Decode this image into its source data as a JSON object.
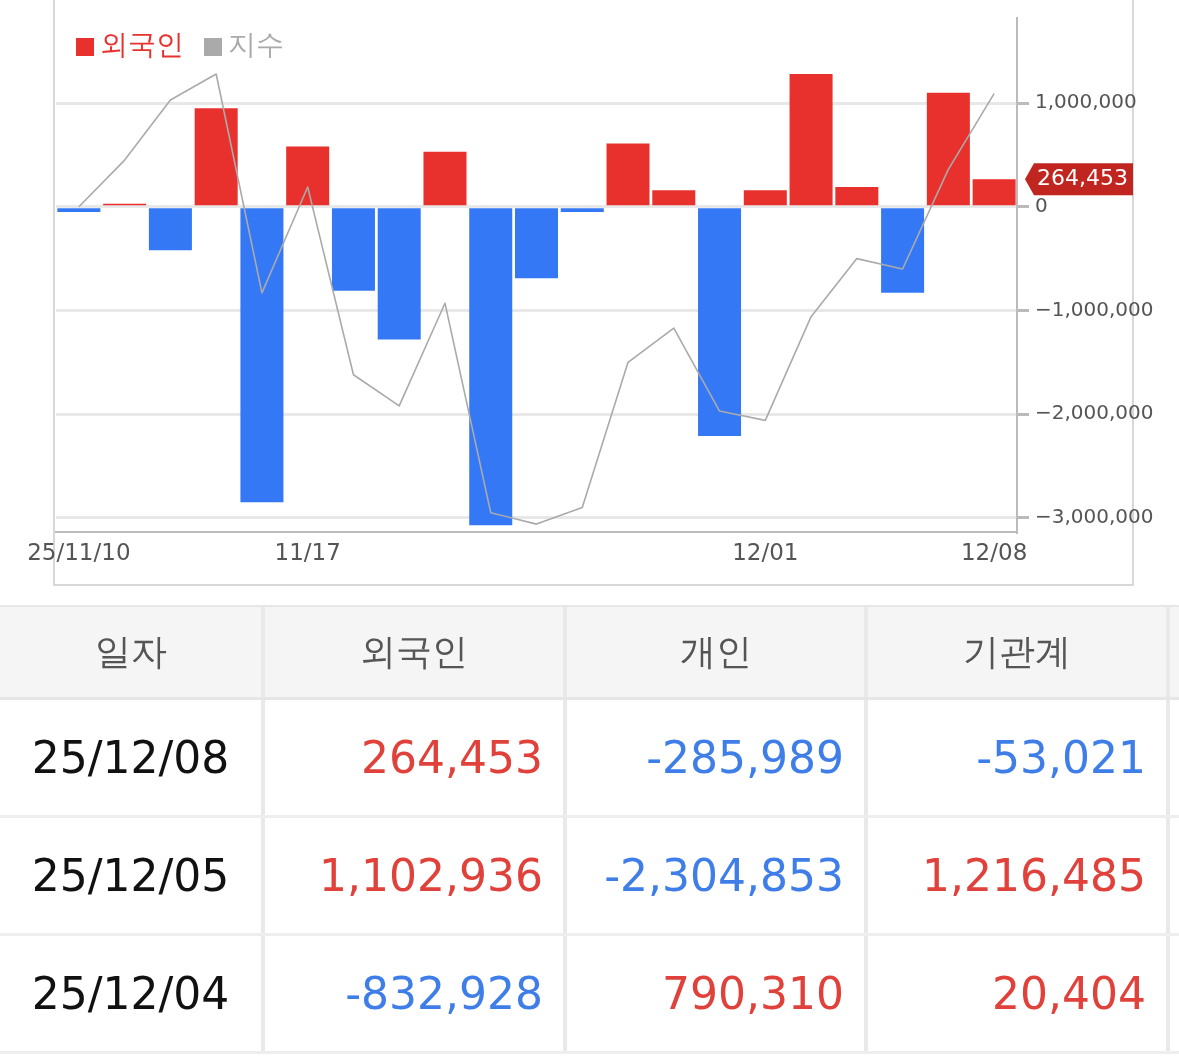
{
  "chart_data": [
    {
      "type": "bar",
      "categories": [
        "25/11/10",
        null,
        null,
        null,
        null,
        "11/17",
        null,
        null,
        null,
        null,
        null,
        null,
        null,
        null,
        null,
        "12/01",
        null,
        null,
        null,
        null,
        "12/08"
      ],
      "series": [
        {
          "name": "외국인",
          "colors": [
            "#3478f6",
            "#e8312c",
            "#3478f6",
            "#e8312c",
            "#3478f6",
            "#e8312c",
            "#3478f6",
            "#3478f6",
            "#e8312c",
            "#3478f6",
            "#3478f6",
            "#3478f6",
            "#e8312c",
            "#e8312c",
            "#3478f6",
            "#e8312c",
            "#e8312c",
            "#e8312c",
            "#3478f6",
            "#e8312c",
            "#e8312c"
          ],
          "values": [
            -50000,
            30000,
            -420000,
            950000,
            -2850000,
            580000,
            -810000,
            -1280000,
            530000,
            -3070000,
            -690000,
            -50000,
            610000,
            160000,
            -2210000,
            160000,
            1280000,
            190000,
            -830000,
            1100000,
            264453
          ]
        },
        {
          "name": "지수",
          "type": "line",
          "color": "#aaaaaa",
          "values": [
            0,
            450000,
            1030000,
            1280000,
            -830000,
            190000,
            -1620000,
            -1920000,
            -930000,
            -2950000,
            -3060000,
            -2900000,
            -1500000,
            -1170000,
            -1970000,
            -2060000,
            -1060000,
            -500000,
            -600000,
            360000,
            1090000
          ]
        }
      ],
      "ylim": [
        -3140000,
        1820000
      ],
      "yticks": [
        {
          "value": 1000000,
          "label": "1,000,000"
        },
        0,
        {
          "value": -1000000,
          "label": "−1,000,000"
        },
        {
          "value": -2000000,
          "label": "−2,000,000"
        },
        {
          "value": -3000000,
          "label": "−3,000,000"
        }
      ],
      "grid": "y",
      "legend": "top left",
      "marker": "none",
      "annotations": [
        {
          "text": "264,453",
          "x": "12/08",
          "y": 264453
        }
      ]
    },
    {
      "type": "heatmap",
      "ylabel": "일자",
      "categories": [
        "외국인",
        "개인",
        "기관계"
      ],
      "y_categories": [
        "25/12/08",
        "25/12/05",
        "25/12/04"
      ],
      "cells": [
        [
          264453,
          -285989,
          -53021
        ],
        [
          1102936,
          -2304853,
          1216485
        ],
        [
          -832928,
          790310,
          20404
        ]
      ],
      "cell_labels": [
        [
          "264,453",
          "-285,989",
          "-53,021"
        ],
        [
          "1,102,936",
          "-2,304,853",
          "1,216,485"
        ],
        [
          "-832,928",
          "790,310",
          "20,404"
        ]
      ]
    }
  ]
}
